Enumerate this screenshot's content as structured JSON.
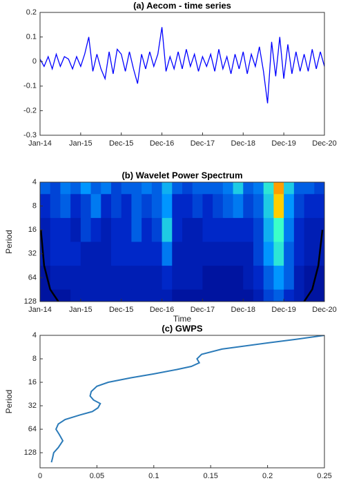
{
  "chart_data": [
    {
      "type": "line",
      "title": "(a) Aecom - time series",
      "x": [
        0,
        0.1,
        0.2,
        0.3,
        0.4,
        0.5,
        0.6,
        0.7,
        0.8,
        0.9,
        1,
        1.1,
        1.2,
        1.3,
        1.4,
        1.5,
        1.6,
        1.7,
        1.8,
        1.9,
        2,
        2.1,
        2.2,
        2.3,
        2.4,
        2.5,
        2.6,
        2.7,
        2.8,
        2.9,
        3,
        3.1,
        3.2,
        3.3,
        3.4,
        3.5,
        3.6,
        3.7,
        3.8,
        3.9,
        4,
        4.1,
        4.2,
        4.3,
        4.4,
        4.5,
        4.6,
        4.7,
        4.8,
        4.9,
        5,
        5.1,
        5.2,
        5.3,
        5.4,
        5.5,
        5.6,
        5.7,
        5.8,
        5.9,
        6,
        6.1,
        6.2,
        6.3,
        6.4,
        6.5,
        6.6,
        6.7,
        6.8,
        6.9,
        7
      ],
      "values": [
        0.01,
        -0.02,
        0.02,
        -0.03,
        0.03,
        -0.02,
        0.02,
        0.01,
        -0.03,
        0.02,
        -0.02,
        0.03,
        0.1,
        -0.04,
        0.03,
        -0.03,
        -0.07,
        0.04,
        -0.05,
        0.05,
        0.03,
        -0.04,
        0.04,
        -0.03,
        -0.09,
        0.03,
        -0.03,
        0.04,
        -0.02,
        0.03,
        0.14,
        -0.04,
        0.02,
        -0.03,
        0.04,
        -0.03,
        0.05,
        -0.02,
        0.03,
        -0.04,
        0.02,
        -0.02,
        0.03,
        -0.04,
        0.05,
        -0.03,
        0.02,
        -0.05,
        0.03,
        -0.03,
        0.04,
        -0.05,
        0.03,
        -0.02,
        0.06,
        -0.04,
        -0.17,
        0.08,
        -0.06,
        0.1,
        -0.07,
        0.07,
        -0.05,
        0.04,
        -0.04,
        0.03,
        -0.04,
        0.05,
        -0.03,
        0.04,
        -0.02
      ],
      "color": "#0000ff",
      "xlim": [
        0,
        7
      ],
      "xticks": [
        {
          "value": 0,
          "label": "Jan-14"
        },
        {
          "value": 1,
          "label": "Jan-15"
        },
        {
          "value": 2,
          "label": "Dec-15"
        },
        {
          "value": 3,
          "label": "Dec-16"
        },
        {
          "value": 4,
          "label": "Dec-17"
        },
        {
          "value": 5,
          "label": "Dec-18"
        },
        {
          "value": 6,
          "label": "Dec-19"
        },
        {
          "value": 7,
          "label": "Dec-20"
        }
      ],
      "ylim": [
        -0.3,
        0.2
      ],
      "yticks": [
        -0.3,
        -0.2,
        -0.1,
        0,
        0.1,
        0.2
      ]
    },
    {
      "type": "heatmap",
      "title": "(b)  Wavelet Power Spectrum",
      "xlabel": "Time",
      "ylabel": "Period",
      "x": [
        0.125,
        0.375,
        0.625,
        0.875,
        1.125,
        1.375,
        1.625,
        1.875,
        2.125,
        2.375,
        2.625,
        2.875,
        3.125,
        3.375,
        3.625,
        3.875,
        4.125,
        4.375,
        4.625,
        4.875,
        5.125,
        5.375,
        5.625,
        5.875,
        6.125,
        6.375,
        6.625,
        6.875
      ],
      "periods": [
        4,
        8,
        16,
        32,
        64,
        128
      ],
      "power": [
        [
          0.3,
          0.25,
          0.35,
          0.3,
          0.4,
          0.3,
          0.35,
          0.25,
          0.3,
          0.3,
          0.35,
          0.3,
          0.45,
          0.3,
          0.25,
          0.3,
          0.3,
          0.3,
          0.35,
          0.5,
          0.3,
          0.35,
          0.55,
          0.9,
          0.5,
          0.3,
          0.3,
          0.25
        ],
        [
          0.2,
          0.25,
          0.3,
          0.2,
          0.25,
          0.35,
          0.2,
          0.25,
          0.2,
          0.3,
          0.25,
          0.3,
          0.4,
          0.2,
          0.2,
          0.25,
          0.2,
          0.25,
          0.3,
          0.35,
          0.25,
          0.3,
          0.5,
          0.85,
          0.4,
          0.25,
          0.2,
          0.2
        ],
        [
          0.15,
          0.2,
          0.2,
          0.15,
          0.25,
          0.2,
          0.15,
          0.2,
          0.2,
          0.3,
          0.2,
          0.25,
          0.5,
          0.2,
          0.15,
          0.15,
          0.2,
          0.2,
          0.2,
          0.2,
          0.2,
          0.25,
          0.45,
          0.6,
          0.35,
          0.2,
          0.15,
          0.15
        ],
        [
          0.15,
          0.2,
          0.2,
          0.2,
          0.15,
          0.15,
          0.15,
          0.2,
          0.2,
          0.2,
          0.2,
          0.2,
          0.35,
          0.15,
          0.15,
          0.15,
          0.15,
          0.15,
          0.15,
          0.15,
          0.15,
          0.25,
          0.4,
          0.55,
          0.3,
          0.2,
          0.15,
          0.15
        ],
        [
          0.1,
          0.15,
          0.15,
          0.15,
          0.15,
          0.15,
          0.15,
          0.15,
          0.15,
          0.15,
          0.15,
          0.15,
          0.2,
          0.15,
          0.15,
          0.15,
          0.1,
          0.1,
          0.1,
          0.1,
          0.15,
          0.2,
          0.3,
          0.4,
          0.3,
          0.15,
          0.1,
          0.1
        ],
        [
          0.1,
          0.1,
          0.1,
          0.15,
          0.15,
          0.15,
          0.15,
          0.15,
          0.15,
          0.15,
          0.15,
          0.15,
          0.15,
          0.1,
          0.1,
          0.1,
          0.1,
          0.1,
          0.1,
          0.1,
          0.1,
          0.15,
          0.25,
          0.3,
          0.2,
          0.15,
          0.1,
          0.1
        ]
      ],
      "coi": [
        {
          "x": [
            0.02,
            0.1,
            0.25,
            0.45
          ],
          "values": [
            16,
            45,
            90,
            128
          ]
        },
        {
          "x": [
            6.95,
            6.85,
            6.7,
            6.5
          ],
          "values": [
            16,
            45,
            90,
            128
          ]
        }
      ],
      "coi_color": "#000000",
      "xlim": [
        0,
        7
      ],
      "xticks": [
        {
          "value": 0,
          "label": "Jan-14"
        },
        {
          "value": 1,
          "label": "Jan-15"
        },
        {
          "value": 2,
          "label": "Dec-15"
        },
        {
          "value": 3,
          "label": "Dec-16"
        },
        {
          "value": 4,
          "label": "Dec-17"
        },
        {
          "value": 5,
          "label": "Dec-18"
        },
        {
          "value": 6,
          "label": "Dec-19"
        },
        {
          "value": 7,
          "label": "Dec-20"
        }
      ],
      "ylim": [
        4,
        128
      ],
      "yticks": [
        4,
        8,
        16,
        32,
        64,
        128
      ],
      "ylog": true,
      "yreverse": true
    },
    {
      "type": "line",
      "title": "(c)  GWPS",
      "ylabel": "Period",
      "x": [
        0.01,
        0.011,
        0.012,
        0.016,
        0.02,
        0.017,
        0.014,
        0.016,
        0.022,
        0.035,
        0.046,
        0.051,
        0.053,
        0.047,
        0.044,
        0.045,
        0.05,
        0.06,
        0.08,
        0.1,
        0.12,
        0.133,
        0.14,
        0.138,
        0.142,
        0.16,
        0.2,
        0.225,
        0.25
      ],
      "values": [
        170,
        150,
        128,
        110,
        90,
        75,
        64,
        55,
        48,
        42,
        38,
        34,
        30,
        27,
        24,
        21,
        18,
        16,
        14,
        12.5,
        11,
        10,
        9,
        8,
        7,
        6,
        5,
        4.5,
        4
      ],
      "color": "#2a7ab8",
      "xlim": [
        0,
        0.25
      ],
      "xticks": [
        0,
        0.05,
        0.1,
        0.15,
        0.2,
        0.25
      ],
      "ylim": [
        4,
        200
      ],
      "yticks": [
        4,
        8,
        16,
        32,
        64,
        128
      ],
      "ylog": true,
      "yreverse": true
    }
  ]
}
